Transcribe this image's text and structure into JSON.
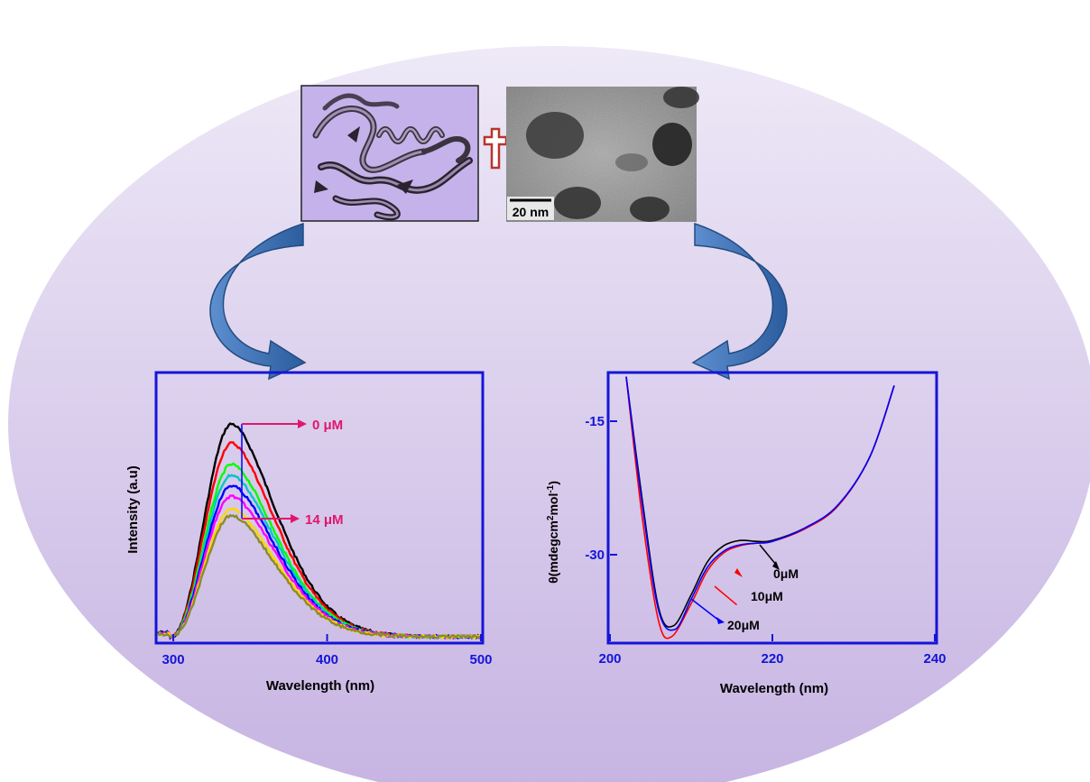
{
  "colors": {
    "ellipse_top": "#ece6f7",
    "ellipse_bottom": "#c7b5e3",
    "axis_blue": "#1515d8",
    "arrow_blue": "#2f6bb2",
    "label_magenta": "#e0166e",
    "protein_box_fill": "#c5b2ea",
    "plus_red": "#b8342b"
  },
  "icons": {
    "protein_image": "protein-ribbon-structure",
    "tem_image": "tem-micrograph",
    "plus_symbol": "plus-icon",
    "curved_arrows": "curved-arrow-icon"
  },
  "tem": {
    "scale_label": "20 nm"
  },
  "fluorescence": {
    "ylabel": "Intensity (a.u)",
    "xlabel": "Wavelength (nm)",
    "label_top": "0 μM",
    "label_bottom": "14 μM",
    "chart_data": {
      "type": "line",
      "x_ticks": [
        300,
        400,
        500
      ],
      "xlim": [
        290,
        500
      ],
      "peak_nm": 338,
      "series": [
        {
          "color": "#000000",
          "peak_relative": 1.0
        },
        {
          "color": "#ff0000",
          "peak_relative": 0.91
        },
        {
          "color": "#00ff00",
          "peak_relative": 0.81
        },
        {
          "color": "#00c8c8",
          "peak_relative": 0.76
        },
        {
          "color": "#0000ff",
          "peak_relative": 0.71
        },
        {
          "color": "#ff00ff",
          "peak_relative": 0.66
        },
        {
          "color": "#ffd700",
          "peak_relative": 0.6
        },
        {
          "color": "#8b8b2a",
          "peak_relative": 0.57
        }
      ]
    }
  },
  "cd": {
    "ylabel_prefix": "θ(mdegcm",
    "ylabel_sup1": "2",
    "ylabel_mid": "mol",
    "ylabel_sup2": "-1",
    "ylabel_suffix": ")",
    "xlabel": "Wavelength (nm)",
    "label_0": "0μM",
    "label_10": "10μM",
    "label_20": "20μM",
    "chart_data": {
      "type": "line",
      "x_ticks": [
        200,
        220,
        240
      ],
      "y_ticks": [
        -15,
        -30
      ],
      "xlim": [
        200,
        240
      ],
      "series": [
        {
          "name": "0μM",
          "color": "#000000",
          "x": [
            202,
            204,
            206,
            207.8,
            210,
            212,
            214,
            216,
            218,
            220,
            224,
            228,
            232,
            235
          ],
          "y": [
            -10,
            -24,
            -36,
            -38.0,
            -34.5,
            -30.8,
            -29.0,
            -28.4,
            -28.5,
            -28.4,
            -27.0,
            -24.5,
            -19.0,
            -11.0
          ]
        },
        {
          "name": "10μM",
          "color": "#ff0000",
          "x": [
            202,
            204,
            206,
            207.6,
            210,
            212,
            214,
            216,
            218,
            220,
            224,
            228,
            232,
            235
          ],
          "y": [
            -10,
            -26,
            -37.5,
            -39.2,
            -35.5,
            -31.8,
            -29.8,
            -29.0,
            -28.7,
            -28.5,
            -27.1,
            -24.6,
            -19.0,
            -11.0
          ]
        },
        {
          "name": "20μM",
          "color": "#0000ff",
          "x": [
            202,
            204,
            206,
            208.0,
            210,
            212,
            214,
            216,
            218,
            220,
            224,
            228,
            232,
            235
          ],
          "y": [
            -10,
            -24.5,
            -36.3,
            -38.4,
            -35.0,
            -31.4,
            -29.6,
            -28.9,
            -28.7,
            -28.5,
            -27.0,
            -24.5,
            -19.0,
            -11.0
          ]
        }
      ]
    }
  }
}
